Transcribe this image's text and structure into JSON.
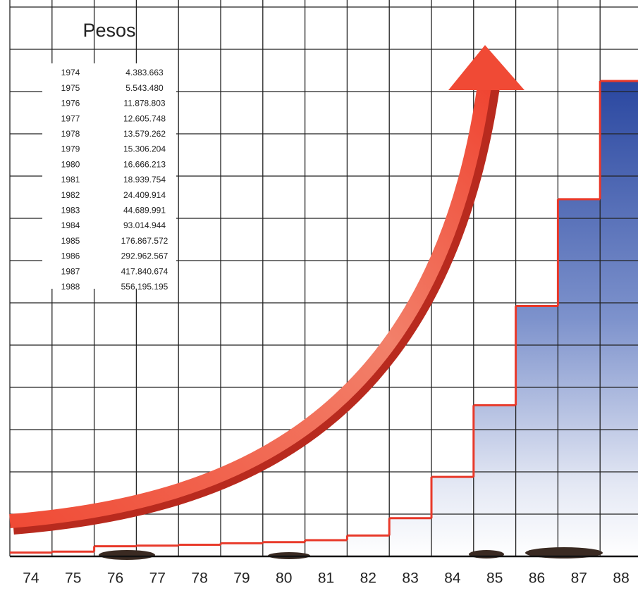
{
  "chart_data": {
    "type": "step",
    "title": "Pesos",
    "categories": [
      "74",
      "75",
      "76",
      "77",
      "78",
      "79",
      "80",
      "81",
      "82",
      "83",
      "84",
      "85",
      "86",
      "87",
      "88"
    ],
    "years": [
      "1974",
      "1975",
      "1976",
      "1977",
      "1978",
      "1979",
      "1980",
      "1981",
      "1982",
      "1983",
      "1984",
      "1985",
      "1986",
      "1987",
      "1988"
    ],
    "values": [
      4383663,
      5543480,
      11878803,
      12605748,
      13579262,
      15306204,
      16666213,
      18939754,
      24409914,
      44689991,
      93014944,
      176867572,
      292962567,
      417840674,
      556195195
    ],
    "value_labels": [
      "4.383.663",
      "5.543.480",
      "11.878.803",
      "12.605.748",
      "13.579.262",
      "15.306.204",
      "16.666.213",
      "18.939.754",
      "24.409.914",
      "44.689.991",
      "93.014.944",
      "176.867.572",
      "292.962.567",
      "417.840.674",
      "556.195.195"
    ],
    "color": "#e8392a",
    "fill_color": "#2f4fa8",
    "grid": true
  }
}
